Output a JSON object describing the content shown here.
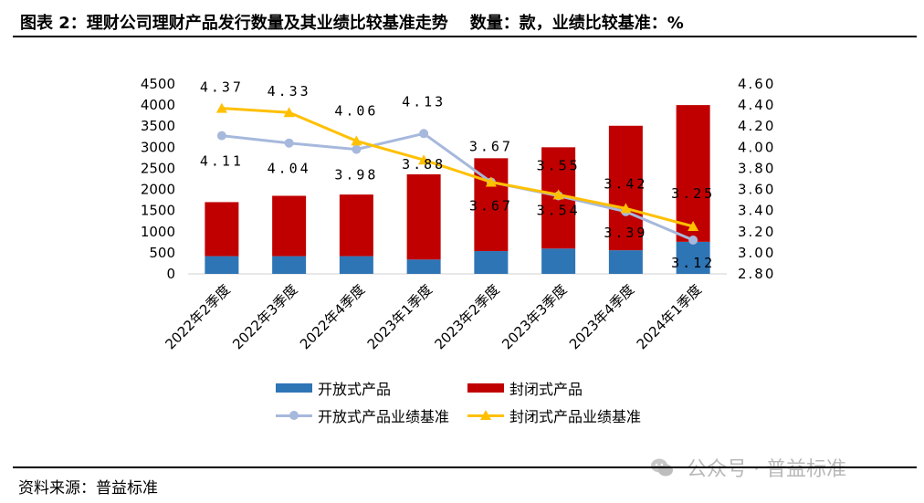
{
  "header": {
    "title": "图表 2：理财公司理财产品发行数量及其业绩比较基准走势",
    "unit_note": "数量：款，业绩比较基准：%"
  },
  "footer": {
    "source": "资料来源：普益标准",
    "watermark": "公众号 · 普益标准"
  },
  "colors": {
    "open_bar": "#2e75b6",
    "closed_bar": "#c00000",
    "open_line": "#a6b8dc",
    "closed_line": "#ffc000"
  },
  "chart_data": {
    "type": "bar",
    "stacked": true,
    "categories": [
      "2022年2季度",
      "2022年3季度",
      "2022年4季度",
      "2023年1季度",
      "2023年2季度",
      "2023年3季度",
      "2023年4季度",
      "2024年1季度"
    ],
    "left_axis": {
      "ylim": [
        0,
        4500
      ],
      "ticks": [
        "0",
        "500",
        "1000",
        "1500",
        "2000",
        "2500",
        "3000",
        "3500",
        "4000",
        "4500"
      ]
    },
    "right_axis": {
      "ylim": [
        2.8,
        4.6
      ],
      "ticks": [
        "2.80",
        "3.00",
        "3.20",
        "3.40",
        "3.60",
        "3.80",
        "4.00",
        "4.20",
        "4.40",
        "4.60"
      ]
    },
    "bar_series": [
      {
        "name": "开放式产品",
        "values": [
          420,
          420,
          420,
          340,
          540,
          600,
          560,
          760
        ]
      },
      {
        "name": "封闭式产品",
        "values": [
          1280,
          1430,
          1460,
          2020,
          2200,
          2400,
          2950,
          3240
        ]
      }
    ],
    "line_series": [
      {
        "name": "开放式产品业绩基准",
        "axis": "right",
        "marker": "circle",
        "values": [
          4.11,
          4.04,
          3.98,
          4.13,
          3.67,
          3.54,
          3.39,
          3.12
        ],
        "labels": [
          "4.11",
          "4.04",
          "3.98",
          "4.13",
          "3.67",
          "3.54",
          "3.39",
          "3.12"
        ]
      },
      {
        "name": "封闭式产品业绩基准",
        "axis": "right",
        "marker": "triangle",
        "values": [
          4.37,
          4.33,
          4.06,
          3.88,
          3.67,
          3.55,
          3.42,
          3.25
        ],
        "labels": [
          "4.37",
          "4.33",
          "4.06",
          "3.88",
          "3.67",
          "3.55",
          "3.42",
          "3.25"
        ]
      }
    ],
    "legend": {
      "position": "bottom",
      "items": [
        "开放式产品",
        "封闭式产品",
        "开放式产品业绩基准",
        "封闭式产品业绩基准"
      ]
    },
    "grid": false
  }
}
